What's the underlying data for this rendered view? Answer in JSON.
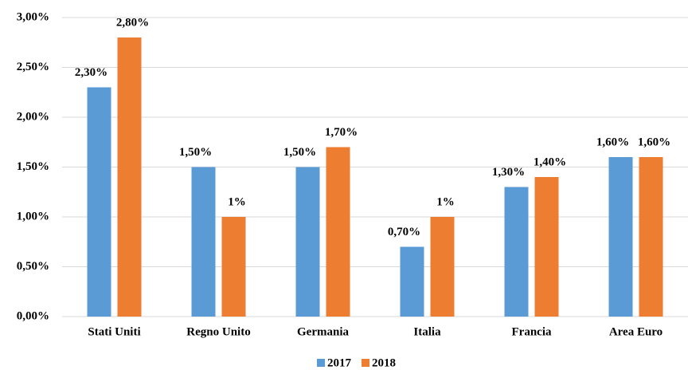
{
  "chart_data": {
    "type": "bar",
    "categories": [
      "Stati Uniti",
      "Regno Unito",
      "Germania",
      "Italia",
      "Francia",
      "Area Euro"
    ],
    "series": [
      {
        "name": "2017",
        "color": "#5b9bd5",
        "values": [
          2.3,
          1.5,
          1.5,
          0.7,
          1.3,
          1.6
        ],
        "value_labels": [
          "2,30%",
          "1,50%",
          "1,50%",
          "0,70%",
          "1,30%",
          "1,60%"
        ]
      },
      {
        "name": "2018",
        "color": "#ed7d31",
        "values": [
          2.8,
          1,
          1.7,
          1,
          1.4,
          1.6
        ],
        "value_labels": [
          "2,80%",
          "1%",
          "1,70%",
          "1%",
          "1,40%",
          "1,60%"
        ]
      }
    ],
    "ylim": [
      0,
      3
    ],
    "yticks": [
      {
        "value": 0,
        "label": "0,00%"
      },
      {
        "value": 0.5,
        "label": "0,50%"
      },
      {
        "value": 1,
        "label": "1,00%"
      },
      {
        "value": 1.5,
        "label": "1,50%"
      },
      {
        "value": 2,
        "label": "2,00%"
      },
      {
        "value": 2.5,
        "label": "2,50%"
      },
      {
        "value": 3,
        "label": "3,00%"
      }
    ],
    "grid": true,
    "legend": "bottom"
  }
}
